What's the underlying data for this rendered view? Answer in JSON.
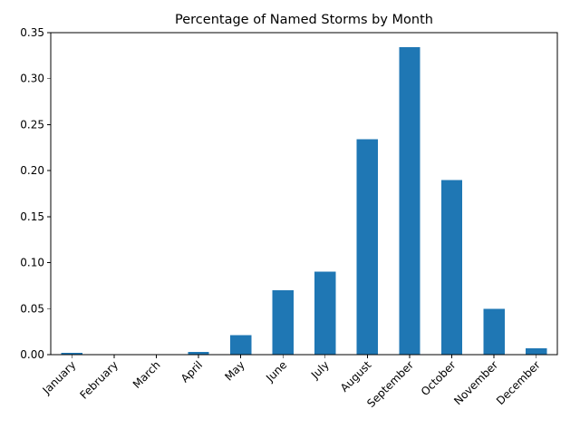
{
  "chart_data": {
    "type": "bar",
    "title": "Percentage of Named Storms by Month",
    "xlabel": "",
    "ylabel": "",
    "categories": [
      "January",
      "February",
      "March",
      "April",
      "May",
      "June",
      "July",
      "August",
      "September",
      "October",
      "November",
      "December"
    ],
    "values": [
      0.002,
      0.0,
      0.0,
      0.003,
      0.021,
      0.07,
      0.09,
      0.234,
      0.334,
      0.19,
      0.05,
      0.007
    ],
    "ylim": [
      0,
      0.35
    ],
    "yticks": [
      0.0,
      0.05,
      0.1,
      0.15,
      0.2,
      0.25,
      0.3,
      0.35
    ],
    "ytick_labels": [
      "0.00",
      "0.05",
      "0.10",
      "0.15",
      "0.20",
      "0.25",
      "0.30",
      "0.35"
    ],
    "xtick_rotation_deg": 45,
    "bar_color": "#1f77b4",
    "grid": false,
    "legend": "none"
  }
}
